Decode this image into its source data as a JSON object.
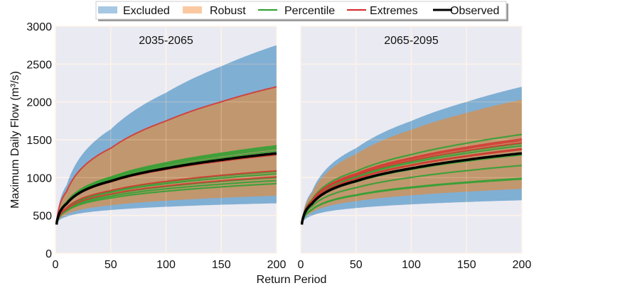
{
  "chart_data": {
    "type": "line",
    "ylabel": "Maximum Daily Flow (m³/s)",
    "xlabel": "Return Period",
    "xlim": [
      0,
      200
    ],
    "ylim": [
      0,
      3000
    ],
    "x_ticks": [
      "0",
      "50",
      "100",
      "150",
      "200"
    ],
    "y_ticks": [
      "0",
      "500",
      "1000",
      "1500",
      "2000",
      "2500",
      "3000"
    ],
    "grid": true,
    "legend_placement": "top-center",
    "legend": [
      {
        "label": "Excluded",
        "kind": "patch",
        "color": "#a6c8e3"
      },
      {
        "label": "Robust",
        "kind": "patch",
        "color": "#fbc9a1"
      },
      {
        "label": "Percentile",
        "kind": "line",
        "color": "#2ca02c"
      },
      {
        "label": "Extremes",
        "kind": "line",
        "color": "#d62728"
      },
      {
        "label": "Observed",
        "kind": "line",
        "color": "#000000"
      }
    ],
    "colors": {
      "background": "#eaeaf2",
      "excluded": "#80afd4",
      "robust": "#c1976f",
      "percentile": "#35a035",
      "extremes": "#d43a33",
      "observed": "#000000"
    },
    "x": [
      1,
      10,
      50,
      100,
      150,
      200
    ],
    "panels": [
      {
        "title": "2035-2065",
        "excluded": {
          "upper": [
            380,
            898,
            1638,
            2122,
            2471,
            2750
          ],
          "lower": [
            380,
            483,
            571,
            614,
            641,
            660
          ]
        },
        "robust": {
          "upper": [
            380,
            815,
            1388,
            1748,
            2001,
            2200
          ],
          "lower": [
            380,
            513,
            634,
            694,
            732,
            760
          ]
        },
        "percentile": [
          [
            380,
            674,
            1005,
            1195,
            1321,
            1420
          ],
          [
            380,
            670,
            995,
            1180,
            1304,
            1400
          ],
          [
            380,
            666,
            985,
            1166,
            1287,
            1380
          ],
          [
            380,
            659,
            969,
            1144,
            1260,
            1350
          ],
          [
            380,
            598,
            822,
            942,
            1021,
            1080
          ],
          [
            380,
            591,
            805,
            919,
            993,
            1050
          ],
          [
            380,
            579,
            777,
            881,
            949,
            1000
          ],
          [
            380,
            569,
            753,
            851,
            913,
            960
          ],
          [
            380,
            558,
            730,
            819,
            877,
            920
          ]
        ],
        "extremes": [
          [
            380,
            815,
            1388,
            1748,
            2001,
            2200
          ],
          [
            380,
            649,
            942,
            1107,
            1216,
            1300
          ],
          [
            380,
            601,
            828,
            950,
            1030,
            1090
          ],
          [
            380,
            581,
            782,
            889,
            958,
            1010
          ]
        ],
        "observed": [
          380,
          653,
          953,
          1121,
          1234,
          1320
        ]
      },
      {
        "title": "2065-2095",
        "excluded": {
          "upper": [
            380,
            815,
            1388,
            1748,
            2001,
            2200
          ],
          "lower": [
            380,
            496,
            597,
            646,
            677,
            700
          ]
        },
        "robust": {
          "upper": [
            380,
            787,
            1310,
            1631,
            1854,
            2030
          ],
          "lower": [
            380,
            539,
            688,
            765,
            813,
            850
          ]
        },
        "percentile": [
          [
            380,
            704,
            1083,
            1304,
            1454,
            1570
          ],
          [
            380,
            680,
            1021,
            1217,
            1348,
            1450
          ],
          [
            380,
            674,
            1005,
            1195,
            1321,
            1420
          ],
          [
            380,
            666,
            985,
            1166,
            1287,
            1380
          ],
          [
            380,
            649,
            942,
            1107,
            1216,
            1300
          ],
          [
            380,
            617,
            866,
            1002,
            1091,
            1160
          ],
          [
            380,
            576,
            771,
            873,
            939,
            990
          ],
          [
            380,
            574,
            764,
            865,
            931,
            980
          ]
        ],
        "extremes": [
          [
            380,
            692,
            1053,
            1261,
            1401,
            1510
          ],
          [
            380,
            688,
            1042,
            1246,
            1383,
            1490
          ],
          [
            380,
            682,
            1027,
            1224,
            1357,
            1460
          ],
          [
            380,
            666,
            985,
            1166,
            1287,
            1380
          ],
          [
            380,
            663,
            980,
            1158,
            1277,
            1370
          ]
        ],
        "observed": [
          380,
          653,
          953,
          1121,
          1234,
          1320
        ]
      }
    ]
  }
}
